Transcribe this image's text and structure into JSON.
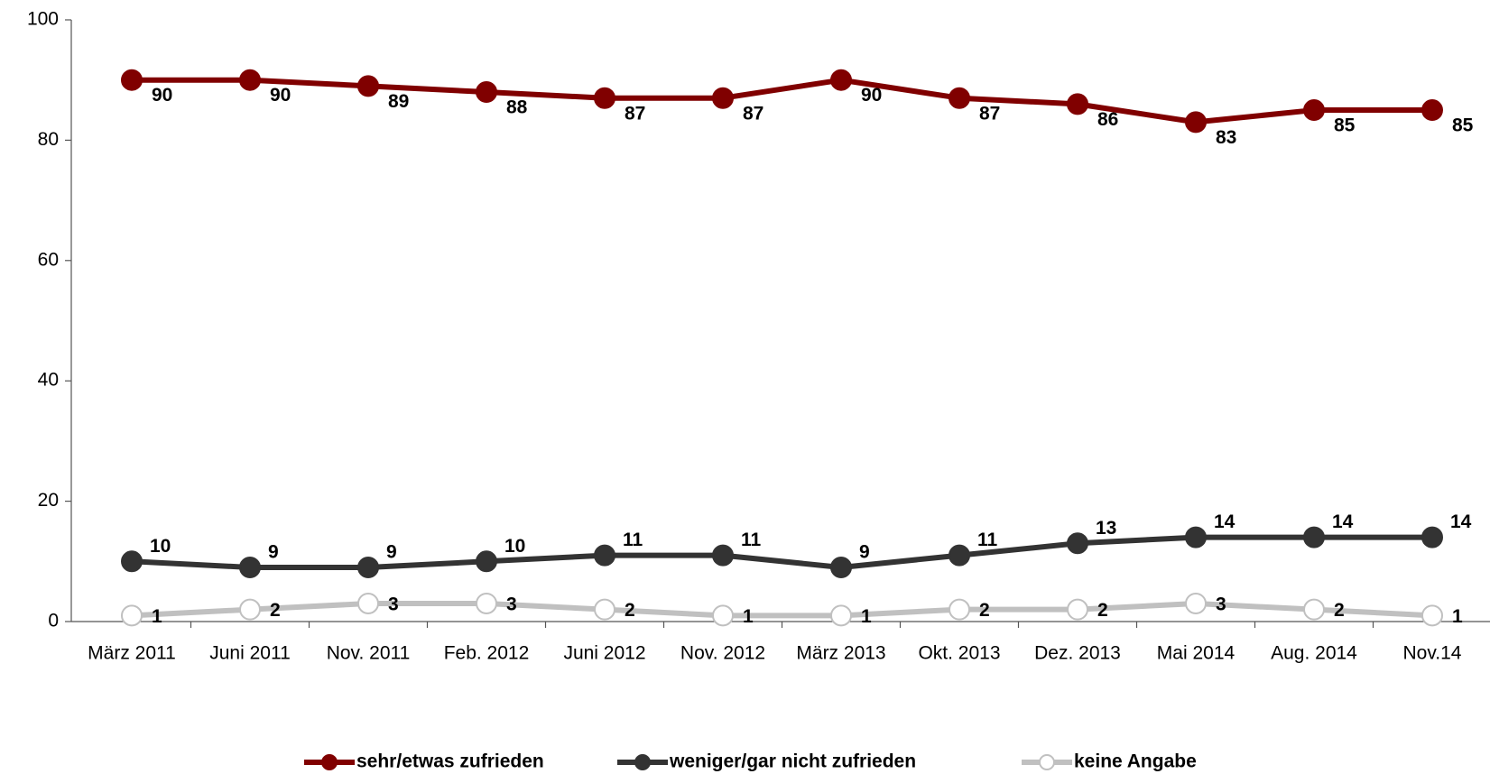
{
  "chart_data": {
    "type": "line",
    "categories": [
      "März 2011",
      "Juni 2011",
      "Nov. 2011",
      "Feb. 2012",
      "Juni 2012",
      "Nov. 2012",
      "März 2013",
      "Okt. 2013",
      "Dez. 2013",
      "Mai 2014",
      "Aug. 2014",
      "Nov.14"
    ],
    "series": [
      {
        "name": "sehr/etwas zufrieden",
        "color": "#800000",
        "marker_color": "#800000",
        "values": [
          90,
          90,
          89,
          88,
          87,
          87,
          90,
          87,
          86,
          83,
          85,
          85
        ]
      },
      {
        "name": "weniger/gar nicht zufrieden",
        "color": "#333333",
        "marker_color": "#333333",
        "values": [
          10,
          9,
          9,
          10,
          11,
          11,
          9,
          11,
          13,
          14,
          14,
          14
        ]
      },
      {
        "name": "keine Angabe",
        "color": "#c0c0c0",
        "marker_color": "#ffffff",
        "values": [
          1,
          2,
          3,
          3,
          2,
          1,
          1,
          2,
          2,
          3,
          2,
          1
        ]
      }
    ],
    "ylim": [
      0,
      100
    ],
    "yticks": [
      0,
      20,
      40,
      60,
      80,
      100
    ],
    "grid": false,
    "legend": "bottom"
  }
}
